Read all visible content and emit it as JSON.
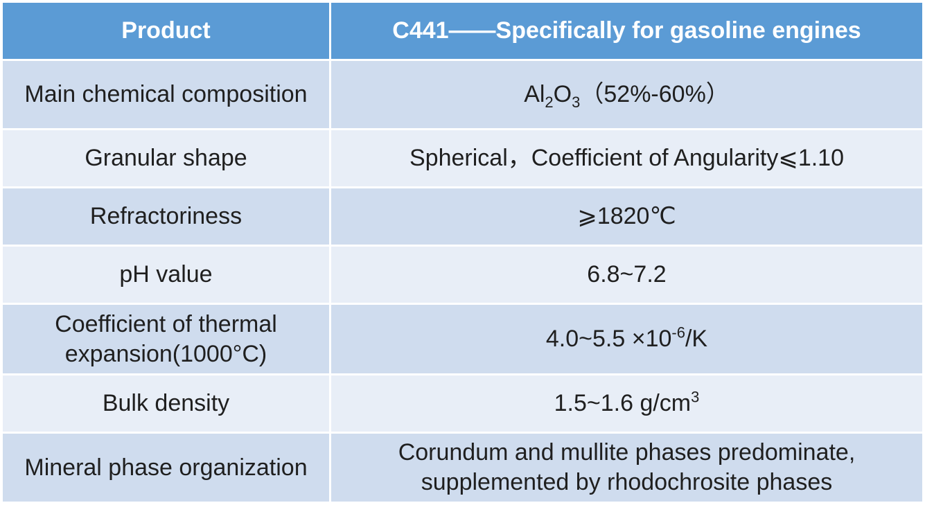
{
  "header": {
    "product_label": "Product",
    "product_value": "C441——Specifically for gasoline engines"
  },
  "rows": [
    {
      "label": "Main chemical composition",
      "value_main": "Al",
      "value_sub1": "2",
      "value_mid": "O",
      "value_sub2": "3",
      "value_tail": "（52%-60%）"
    },
    {
      "label": "Granular shape",
      "value": "Spherical，Coefficient of Angularity⩽1.10"
    },
    {
      "label": "Refractoriness",
      "value": "⩾1820℃"
    },
    {
      "label": "pH value",
      "value": "6.8~7.2"
    },
    {
      "label": "Coefficient of thermal expansion(1000°C)",
      "value_main": "4.0~5.5 ×10",
      "value_sup": "-6",
      "value_tail": "/K"
    },
    {
      "label": "Bulk density",
      "value_main": "1.5~1.6 g/cm",
      "value_sup": "3"
    },
    {
      "label": "Mineral phase organization",
      "value": "Corundum and mullite phases predominate, supplemented by rhodochrosite phases"
    }
  ],
  "colors": {
    "header_bg": "#5b9bd5",
    "row_odd_bg": "#cfdcee",
    "row_even_bg": "#e8eef7",
    "header_text": "#ffffff",
    "body_text": "#1f1f1f"
  }
}
